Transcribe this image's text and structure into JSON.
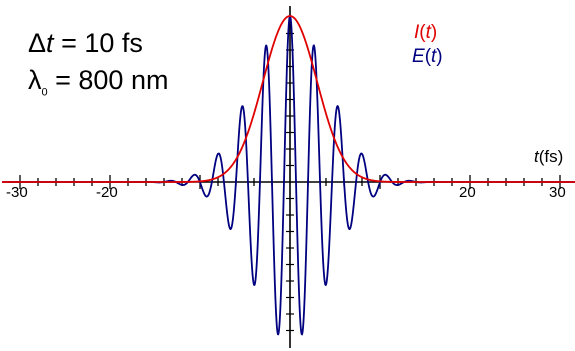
{
  "annotation": {
    "delta_t": {
      "symbol": "Δ",
      "var": "t",
      "rest": " = 10 fs"
    },
    "lambda0": {
      "symbol": "λ",
      "sub": "0",
      "rest": " = 800 nm"
    }
  },
  "legend": {
    "intensity": {
      "var": "I",
      "open": "(",
      "arg": "t",
      "close": ")",
      "color": "#e00000"
    },
    "field": {
      "var": "E",
      "open": "(",
      "arg": "t",
      "close": ")",
      "color": "#000080"
    }
  },
  "axis_label": {
    "var": "t",
    "unit": "(fs)"
  },
  "chart_data": {
    "type": "line",
    "xlabel": "t(fs)",
    "ylabel": "",
    "xlim": [
      -32,
      32
    ],
    "ylim": [
      -1.05,
      1.05
    ],
    "x_ticks": [
      -30,
      -20,
      20,
      30
    ],
    "grid": false,
    "legend_placement": "top-right",
    "pulse_fwhm_fs": 10,
    "center_wavelength_nm": 800,
    "optical_period_fs": 2.67,
    "series": [
      {
        "name": "I(t)",
        "color": "#e00000",
        "x_step_fs": 0.5,
        "x_start_fs": -32,
        "sample_points": [
          [
            -16,
            0.0
          ],
          [
            -12,
            0.05
          ],
          [
            -8,
            0.24
          ],
          [
            -4,
            0.64
          ],
          [
            0,
            1.0
          ],
          [
            4,
            0.64
          ],
          [
            8,
            0.24
          ],
          [
            12,
            0.05
          ],
          [
            16,
            0.0
          ]
        ]
      },
      {
        "name": "E(t)",
        "color": "#000080",
        "sample_points": [
          [
            -16,
            0.0
          ],
          [
            -12,
            -0.21
          ],
          [
            -8,
            0.48
          ],
          [
            -5.3,
            -0.74
          ],
          [
            -2.7,
            0.92
          ],
          [
            0,
            1.0
          ],
          [
            2.7,
            0.92
          ],
          [
            5.3,
            -0.74
          ],
          [
            8,
            0.48
          ],
          [
            12,
            -0.21
          ],
          [
            16,
            0.0
          ]
        ]
      }
    ]
  }
}
